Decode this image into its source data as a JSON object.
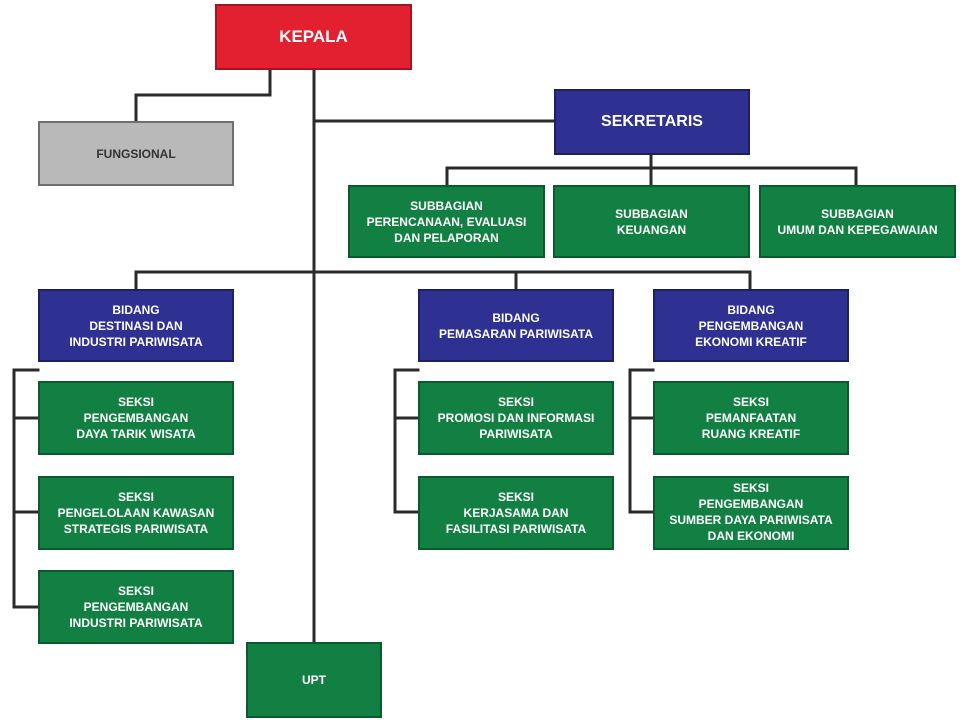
{
  "chart": {
    "kepala": "KEPALA",
    "fungsional": "FUNGSIONAL",
    "sekretaris": "SEKRETARIS",
    "subbagian": [
      "SUBBAGIAN\nPERENCANAAN, EVALUASI\nDAN PELAPORAN",
      "SUBBAGIAN\nKEUANGAN",
      "SUBBAGIAN\nUMUM DAN KEPEGAWAIAN"
    ],
    "bidang": [
      {
        "title": "BIDANG\nDESTINASI DAN\nINDUSTRI PARIWISATA",
        "seksi": [
          "SEKSI\nPENGEMBANGAN\nDAYA TARIK WISATA",
          "SEKSI\nPENGELOLAAN KAWASAN\nSTRATEGIS PARIWISATA",
          "SEKSI\nPENGEMBANGAN\nINDUSTRI PARIWISATA"
        ]
      },
      {
        "title": "BIDANG\nPEMASARAN PARIWISATA",
        "seksi": [
          "SEKSI\nPROMOSI DAN INFORMASI\nPARIWISATA",
          "SEKSI\nKERJASAMA DAN\nFASILITASI PARIWISATA"
        ]
      },
      {
        "title": "BIDANG\nPENGEMBANGAN\nEKONOMI KREATIF",
        "seksi": [
          "SEKSI\nPEMANFAATAN\nRUANG KREATIF",
          "SEKSI\nPENGEMBANGAN\nSUMBER DAYA PARIWISATA\nDAN EKONOMI"
        ]
      }
    ],
    "upt": "UPT",
    "colors": {
      "kepala": "#e2202f",
      "fungsional": "#b9b9b9",
      "sekretaris_bidang": "#2e3192",
      "unit": "#128043",
      "connector": "#2b2b2b"
    }
  }
}
